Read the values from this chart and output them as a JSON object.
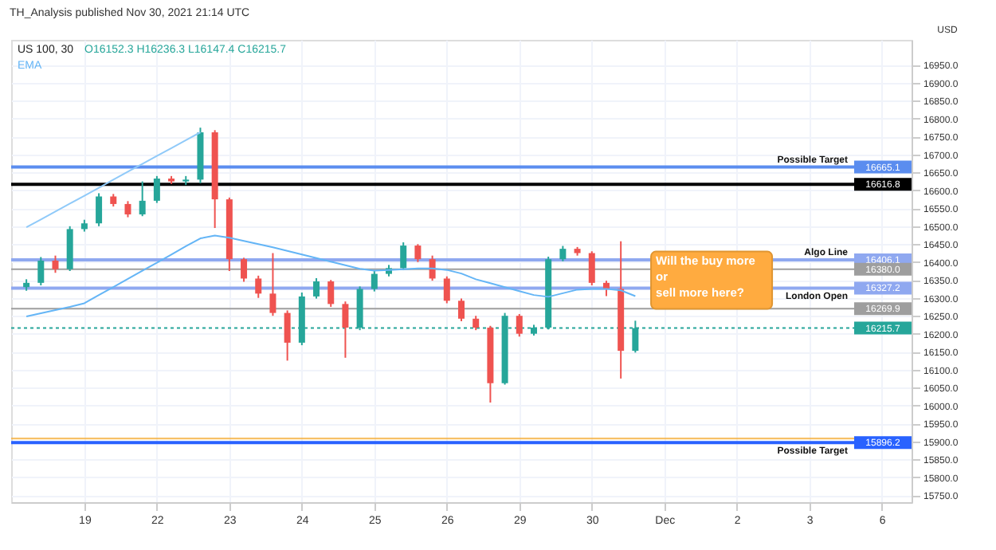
{
  "chart_data": {
    "type": "candlestick",
    "title": "US 100, 30",
    "subtitle": "O16152.3 H16236.3 L16147.4 C16215.7",
    "ylabel": "USD",
    "annotations": [
      "TH_Analysis published Nov 30, 2021 21:14 UTC",
      "Will the buy more\nor\nsell more here?",
      {
        "text": "16665.1",
        "y": 16665.1
      },
      {
        "text": "16616.8",
        "y": 16616.8
      },
      {
        "text": "16406.1",
        "y": 16406.1
      },
      {
        "text": "16380.0",
        "y": 16380.0
      },
      {
        "text": "16327.2",
        "y": 16327.2
      },
      {
        "text": "16269.9",
        "y": 16269.9
      },
      {
        "text": "16215.7",
        "y": 16215.7
      },
      {
        "text": "15896.2",
        "y": 15896.2
      }
    ],
    "categories": [
      null,
      null,
      null,
      null,
      "19",
      null,
      null,
      null,
      null,
      "22",
      null,
      null,
      null,
      null,
      "23",
      null,
      null,
      null,
      null,
      "24",
      null,
      null,
      null,
      null,
      "25",
      null,
      null,
      null,
      null,
      "26",
      null,
      null,
      null,
      null,
      "29",
      null,
      null,
      null,
      null,
      "30",
      null,
      null,
      null,
      null,
      "Dec",
      null,
      null,
      null,
      null,
      "2",
      null,
      null,
      null,
      null,
      "3",
      null,
      null,
      null,
      null,
      "6",
      null
    ],
    "ohlc": [
      [
        16330,
        16352,
        16320,
        16342
      ],
      [
        16342,
        16414,
        16335,
        16404
      ],
      [
        16404,
        16418,
        16370,
        16380
      ],
      [
        16380,
        16500,
        16375,
        16492
      ],
      [
        16492,
        16518,
        16485,
        16508
      ],
      [
        16508,
        16592,
        16500,
        16583
      ],
      [
        16583,
        16590,
        16555,
        16562
      ],
      [
        16562,
        16570,
        16525,
        16533
      ],
      [
        16533,
        16625,
        16528,
        16571
      ],
      [
        16571,
        16640,
        16565,
        16633
      ],
      [
        16633,
        16640,
        16618,
        16625
      ],
      [
        16625,
        16640,
        16615,
        16630
      ],
      [
        16630,
        16775,
        16620,
        16762
      ],
      [
        16762,
        16768,
        16495,
        16575
      ],
      [
        16575,
        16580,
        16375,
        16408
      ],
      [
        16408,
        16412,
        16345,
        16354
      ],
      [
        16354,
        16362,
        16300,
        16312
      ],
      [
        16312,
        16425,
        16250,
        16258
      ],
      [
        16258,
        16265,
        16125,
        16175
      ],
      [
        16175,
        16315,
        16168,
        16304
      ],
      [
        16304,
        16355,
        16298,
        16346
      ],
      [
        16346,
        16350,
        16275,
        16283
      ],
      [
        16283,
        16290,
        16133,
        16217
      ],
      [
        16217,
        16332,
        16210,
        16325
      ],
      [
        16325,
        16375,
        16318,
        16367
      ],
      [
        16367,
        16392,
        16360,
        16383
      ],
      [
        16383,
        16455,
        16378,
        16446
      ],
      [
        16446,
        16450,
        16400,
        16408
      ],
      [
        16408,
        16418,
        16348,
        16354
      ],
      [
        16354,
        16360,
        16285,
        16292
      ],
      [
        16292,
        16298,
        16235,
        16242
      ],
      [
        16242,
        16250,
        16210,
        16217
      ],
      [
        16217,
        16222,
        16008,
        16062
      ],
      [
        16062,
        16258,
        16058,
        16250
      ],
      [
        16250,
        16255,
        16192,
        16200
      ],
      [
        16200,
        16225,
        16195,
        16217
      ],
      [
        16217,
        16415,
        16212,
        16408
      ],
      [
        16408,
        16445,
        16402,
        16437
      ],
      [
        16437,
        16442,
        16418,
        16425
      ],
      [
        16425,
        16430,
        16335,
        16342
      ],
      [
        16342,
        16348,
        16305,
        16325
      ],
      [
        16325,
        16458,
        16075,
        16152.3
      ],
      [
        16152.3,
        16236.3,
        16147.4,
        16215.7
      ],
      null,
      null,
      null,
      null,
      null,
      null,
      null,
      null,
      null,
      null,
      null,
      null,
      null,
      null,
      null,
      null,
      null,
      null
    ],
    "series": [
      {
        "name": "EMA",
        "type": "line",
        "color": "#64b5f6",
        "values": [
          16248,
          16257,
          16266,
          16275,
          16285,
          16308,
          16330,
          16353,
          16376,
          16398,
          16421,
          16444,
          16466,
          16474,
          16468,
          16459,
          16450,
          16441,
          16431,
          16421,
          16411,
          16401,
          16391,
          16381,
          16376,
          16378,
          16380,
          16382,
          16382,
          16378,
          16368,
          16352,
          16341,
          16330,
          16319,
          16308,
          16303,
          16313,
          16323,
          16325,
          16325,
          16321,
          16305,
          null,
          null,
          null,
          null,
          null,
          null,
          null,
          null,
          null,
          null,
          null,
          null,
          null,
          null,
          null,
          null,
          null,
          null
        ]
      },
      {
        "type": "line",
        "color": "#90caf9",
        "values": [
          16497,
          16519,
          16541,
          16563,
          16585,
          16607,
          16630,
          16652,
          16674,
          16696,
          16718,
          16740,
          16762,
          null,
          null,
          null,
          null,
          null,
          null,
          null,
          null,
          null,
          null,
          null,
          null,
          null,
          null,
          null,
          null,
          null,
          null,
          null,
          null,
          null,
          null,
          null,
          null,
          null,
          null,
          null,
          null,
          null,
          null,
          null,
          null,
          null,
          null,
          null,
          null,
          null,
          null,
          null,
          null,
          null,
          null,
          null,
          null,
          null,
          null,
          null,
          null
        ]
      }
    ],
    "ref_lines": [
      {
        "axis": "y",
        "value": 16665.1,
        "label": "Possible Target",
        "color": "#5b8def"
      },
      {
        "axis": "y",
        "value": 16616.8,
        "color": "#000000"
      },
      {
        "axis": "y",
        "value": 16406.1,
        "label": "Algo Line",
        "color": "#8fa8f0"
      },
      {
        "axis": "y",
        "value": 16380.0,
        "color": "#9e9e9e"
      },
      {
        "axis": "y",
        "value": 16327.2,
        "label": "London Open",
        "color": "#8fa8f0"
      },
      {
        "axis": "y",
        "value": 16269.9,
        "color": "#9e9e9e"
      },
      {
        "axis": "y",
        "value": 16215.7,
        "color": "#26a69a",
        "line_style": "dotted"
      },
      {
        "axis": "y",
        "value": 15896.2,
        "label": "Possible Target",
        "color": "#2962ff"
      }
    ],
    "bands": [
      {
        "axis": "y",
        "from": 15905,
        "to": 15910,
        "color": "#f5b041"
      }
    ],
    "ylim": [
      15730,
      17020
    ],
    "yticks": [
      {
        "value": 15750,
        "label": "15750.0"
      },
      {
        "value": 15800,
        "label": "15800.0"
      },
      {
        "value": 15850,
        "label": "15850.0"
      },
      {
        "value": 15900,
        "label": "15900.0"
      },
      {
        "value": 15950,
        "label": "15950.0"
      },
      {
        "value": 16000,
        "label": "16000.0"
      },
      {
        "value": 16050,
        "label": "16050.0"
      },
      {
        "value": 16100,
        "label": "16100.0"
      },
      {
        "value": 16150,
        "label": "16150.0"
      },
      {
        "value": 16200,
        "label": "16200.0"
      },
      {
        "value": 16250,
        "label": "16250.0"
      },
      {
        "value": 16300,
        "label": "16300.0"
      },
      {
        "value": 16350,
        "label": "16350.0"
      },
      {
        "value": 16400,
        "label": "16400.0"
      },
      {
        "value": 16450,
        "label": "16450.0"
      },
      {
        "value": 16500,
        "label": "16500.0"
      },
      {
        "value": 16550,
        "label": "16550.0"
      },
      {
        "value": 16600,
        "label": "16600.0"
      },
      {
        "value": 16650,
        "label": "16650.0"
      },
      {
        "value": 16700,
        "label": "16700.0"
      },
      {
        "value": 16750,
        "label": "16750.0"
      },
      {
        "value": 16800,
        "label": "16800.0"
      },
      {
        "value": 16850,
        "label": "16850.0"
      },
      {
        "value": 16900,
        "label": "16900.0"
      },
      {
        "value": 16950,
        "label": "16950.0"
      }
    ],
    "grid": true,
    "legend": "top left"
  }
}
